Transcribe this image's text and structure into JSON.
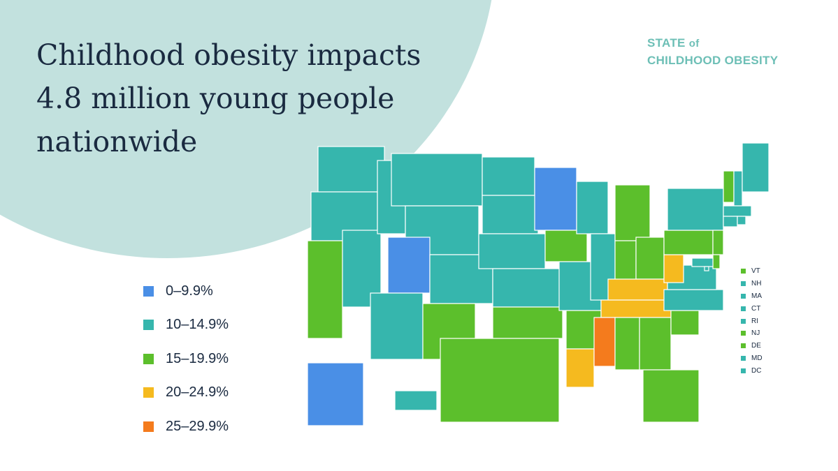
{
  "title": "Childhood obesity impacts 4.8 million young people nationwide",
  "logo": {
    "line1": "STATE",
    "line1_suffix": "of",
    "line2": "CHILDHOOD OBESITY"
  },
  "colors": {
    "background_circle": "#c2e1de",
    "logo": "#6dbfb6"
  },
  "legend": [
    {
      "label": "0–9.9%",
      "color": "#4a8fe6"
    },
    {
      "label": "10–14.9%",
      "color": "#36b6ad"
    },
    {
      "label": "15–19.9%",
      "color": "#5cbf2c"
    },
    {
      "label": "20–24.9%",
      "color": "#f5ba1f"
    },
    {
      "label": "25–29.9%",
      "color": "#f47b1d"
    }
  ],
  "small_states": [
    {
      "label": "VT",
      "category": 2
    },
    {
      "label": "NH",
      "category": 1
    },
    {
      "label": "MA",
      "category": 1
    },
    {
      "label": "CT",
      "category": 1
    },
    {
      "label": "RI",
      "category": 1
    },
    {
      "label": "NJ",
      "category": 2
    },
    {
      "label": "DE",
      "category": 2
    },
    {
      "label": "MD",
      "category": 1
    },
    {
      "label": "DC",
      "category": 1
    }
  ],
  "state_categories": {
    "WA": 1,
    "OR": 1,
    "CA": 2,
    "NV": 1,
    "ID": 1,
    "MT": 1,
    "WY": 1,
    "UT": 0,
    "CO": 1,
    "AZ": 1,
    "NM": 2,
    "ND": 1,
    "SD": 1,
    "NE": 1,
    "KS": 1,
    "OK": 2,
    "TX": 2,
    "MN": 0,
    "IA": 2,
    "MO": 1,
    "AR": 2,
    "LA": 3,
    "WI": 1,
    "IL": 1,
    "MI": 2,
    "IN": 2,
    "OH": 2,
    "KY": 3,
    "TN": 3,
    "MS": 4,
    "AL": 2,
    "GA": 2,
    "FL": 2,
    "SC": 2,
    "NC": 1,
    "VA": 1,
    "WV": 3,
    "PA": 2,
    "NY": 1,
    "VT": 2,
    "NH": 1,
    "ME": 1,
    "MA": 1,
    "CT": 1,
    "RI": 1,
    "NJ": 2,
    "DE": 2,
    "MD": 1,
    "DC": 1,
    "AK": 0,
    "HI": 1
  }
}
